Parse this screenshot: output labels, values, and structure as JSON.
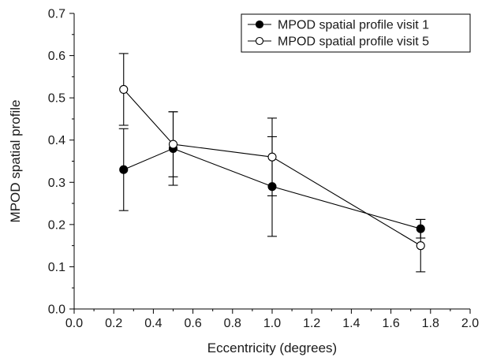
{
  "chart_data": {
    "type": "line",
    "title": "",
    "xlabel": "Eccentricity (degrees)",
    "ylabel": "MPOD spatial profile",
    "xlim": [
      0.0,
      2.0
    ],
    "ylim": [
      0.0,
      0.7
    ],
    "xticks": [
      "0.0",
      "0.2",
      "0.4",
      "0.6",
      "0.8",
      "1.0",
      "1.2",
      "1.4",
      "1.6",
      "1.8",
      "2.0"
    ],
    "yticks": [
      "0.0",
      "0.1",
      "0.2",
      "0.3",
      "0.4",
      "0.5",
      "0.6",
      "0.7"
    ],
    "grid": false,
    "legend_position": "top-right",
    "series": [
      {
        "name": "MPOD spatial profile visit 1",
        "marker": "filled-circle",
        "color": "#000000",
        "x": [
          0.25,
          0.5,
          1.0,
          1.75
        ],
        "y": [
          0.33,
          0.38,
          0.29,
          0.19
        ],
        "error": [
          0.097,
          0.087,
          0.118,
          0.022
        ]
      },
      {
        "name": "MPOD spatial profile visit 5",
        "marker": "open-circle",
        "color": "#000000",
        "x": [
          0.25,
          0.5,
          1.0,
          1.75
        ],
        "y": [
          0.52,
          0.39,
          0.36,
          0.15
        ],
        "error": [
          0.085,
          0.077,
          0.092,
          0.062
        ]
      }
    ]
  }
}
